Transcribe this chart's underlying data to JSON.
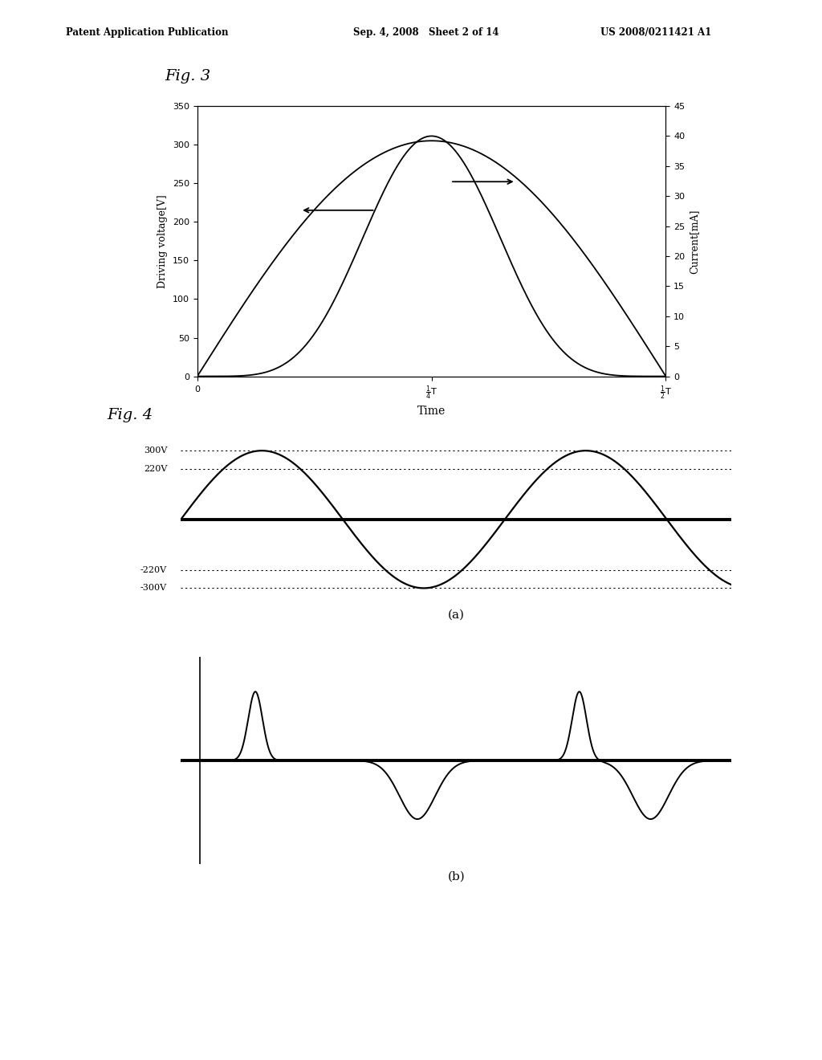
{
  "background_color": "#ffffff",
  "header_left": "Patent Application Publication",
  "header_mid": "Sep. 4, 2008   Sheet 2 of 14",
  "header_right": "US 2008/0211421 A1",
  "fig3_label": "Fig. 3",
  "fig4_label": "Fig. 4",
  "fig3": {
    "ylabel_left": "Driving voltage[V]",
    "ylabel_right": "Current[mA]",
    "xlabel": "Time",
    "ylim_left": [
      0,
      350
    ],
    "ylim_right": [
      0,
      45
    ],
    "yticks_left": [
      0,
      50,
      100,
      150,
      200,
      250,
      300,
      350
    ],
    "yticks_right": [
      0,
      5,
      10,
      15,
      20,
      25,
      30,
      35,
      40,
      45
    ],
    "voltage_peak": 305,
    "current_peak": 40
  },
  "fig4a": {
    "amplitude": 300,
    "ylim": [
      -340,
      340
    ],
    "ref_lines": [
      300,
      220,
      -220,
      -300
    ],
    "ref_labels": [
      "300V",
      "220V",
      "-220V",
      "-300V"
    ]
  },
  "fig4b": {
    "ylim": [
      -1.5,
      1.5
    ]
  }
}
